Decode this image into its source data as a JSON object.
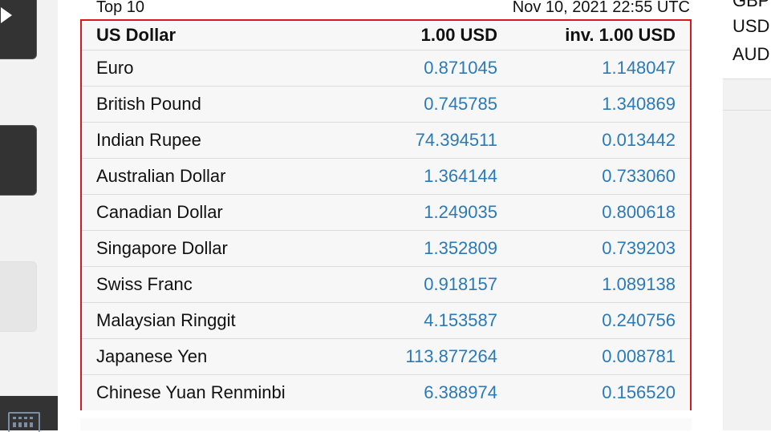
{
  "widget": {
    "top_label": "Top 10",
    "timestamp": "Nov 10, 2021 22:55 UTC"
  },
  "table": {
    "headers": {
      "base": "US Dollar",
      "rate": "1.00 USD",
      "inverse": "inv. 1.00 USD"
    },
    "rows": [
      {
        "currency": "Euro",
        "rate": "0.871045",
        "inverse": "1.148047"
      },
      {
        "currency": "British Pound",
        "rate": "0.745785",
        "inverse": "1.340869"
      },
      {
        "currency": "Indian Rupee",
        "rate": "74.394511",
        "inverse": "0.013442"
      },
      {
        "currency": "Australian Dollar",
        "rate": "1.364144",
        "inverse": "0.733060"
      },
      {
        "currency": "Canadian Dollar",
        "rate": "1.249035",
        "inverse": "0.800618"
      },
      {
        "currency": "Singapore Dollar",
        "rate": "1.352809",
        "inverse": "0.739203"
      },
      {
        "currency": "Swiss Franc",
        "rate": "0.918157",
        "inverse": "1.089138"
      },
      {
        "currency": "Malaysian Ringgit",
        "rate": "4.153587",
        "inverse": "0.240756"
      },
      {
        "currency": "Japanese Yen",
        "rate": "113.877264",
        "inverse": "0.008781"
      },
      {
        "currency": "Chinese Yuan Renminbi",
        "rate": "6.388974",
        "inverse": "0.156520"
      }
    ]
  },
  "right_panel": {
    "items": [
      "GBP",
      "USD",
      "AUD"
    ]
  },
  "left_rail": {
    "icons": [
      "play-icon",
      "calendar-icon"
    ]
  },
  "colors": {
    "accent_border": "#d9171d",
    "link_blue": "#2a7ab8"
  }
}
